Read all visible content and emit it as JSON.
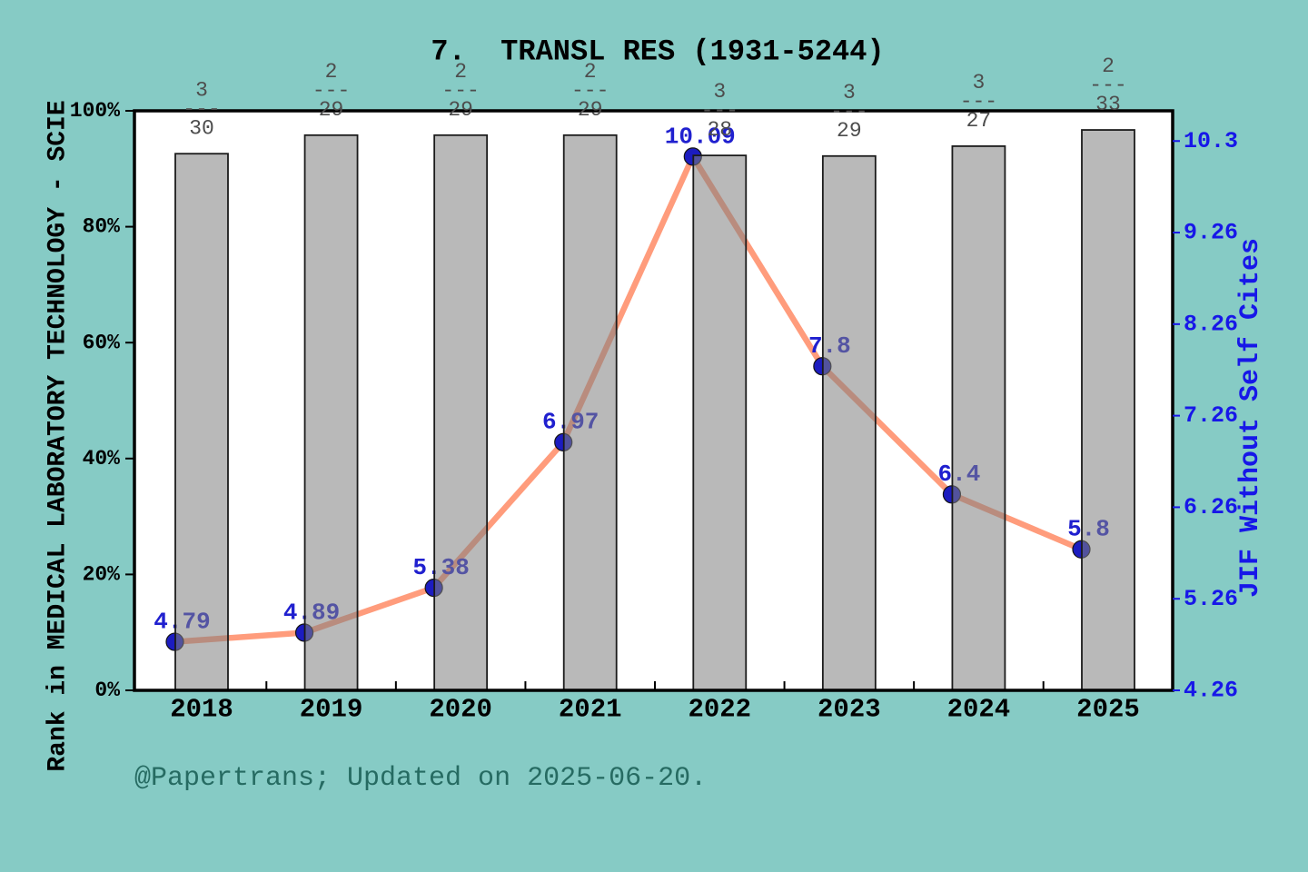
{
  "title": "7.  TRANSL RES (1931-5244)",
  "footer": "@Papertrans; Updated on 2025-06-20.",
  "colors": {
    "background": "#86cbc5",
    "plot_background": "#ffffff",
    "bar_fill": "rgba(127,127,127,0.55)",
    "bar_edge": "#1b1b1b",
    "line": "#ff9c7c",
    "dot": "#1c1cc0",
    "point_label": "#2020cf",
    "right_axis": "#1717e8",
    "fraction_label": "#4d4d4d",
    "left_axis": "#000000",
    "footer_text": "#266b62"
  },
  "chart_data": {
    "type": "combo-bar-line",
    "categories": [
      "2018",
      "2019",
      "2020",
      "2021",
      "2022",
      "2023",
      "2024",
      "2025"
    ],
    "bar_series": {
      "name": "Rank in MEDICAL LABORATORY TECHNOLOGY - SCIE (percentile)",
      "values_percent": [
        92.6,
        95.8,
        95.8,
        95.8,
        92.3,
        92.2,
        93.9,
        96.7
      ],
      "rank_fractions": [
        {
          "num": "3",
          "den": "30"
        },
        {
          "num": "2",
          "den": "29"
        },
        {
          "num": "2",
          "den": "29"
        },
        {
          "num": "2",
          "den": "29"
        },
        {
          "num": "3",
          "den": "28"
        },
        {
          "num": "3",
          "den": "29"
        },
        {
          "num": "3",
          "den": "27"
        },
        {
          "num": "2",
          "den": "33"
        }
      ],
      "fraction_rule": "---"
    },
    "line_series": {
      "name": "JIF Without Self Cites",
      "values": [
        4.79,
        4.89,
        5.38,
        6.97,
        10.09,
        7.8,
        6.4,
        5.8
      ],
      "point_labels": [
        "4.79",
        "4.89",
        "5.38",
        "6.97",
        "10.09",
        "7.8",
        "6.4",
        "5.8"
      ]
    },
    "left_axis": {
      "label": "Rank in MEDICAL LABORATORY TECHNOLOGY - SCIE",
      "tick_values": [
        0,
        20,
        40,
        60,
        80,
        100
      ],
      "tick_labels": [
        "0%",
        "20%",
        "40%",
        "60%",
        "80%",
        "100%"
      ],
      "range": [
        0,
        100
      ]
    },
    "right_axis": {
      "label": "JIF Without Self Cites",
      "tick_values": [
        4.26,
        5.26,
        6.26,
        7.26,
        8.26,
        9.26,
        10.26
      ],
      "tick_labels": [
        "4.26",
        "5.26",
        "6.26",
        "7.26",
        "8.26",
        "9.26",
        "10.3"
      ],
      "range": [
        4.26,
        10.59
      ]
    },
    "grid": false,
    "legend": "none"
  }
}
